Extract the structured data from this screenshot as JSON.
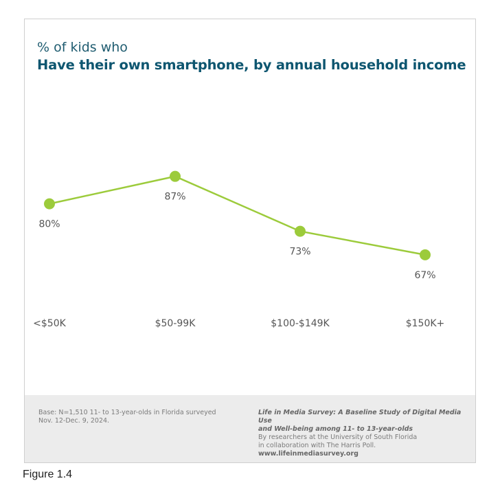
{
  "figure_caption": "Figure 1.4",
  "chart_data": {
    "type": "line",
    "subtitle": "% of kids who",
    "title": "Have their own smartphone, by annual household income",
    "categories": [
      "<$50K",
      "$50-99K",
      "$100-$149K",
      "$150K+"
    ],
    "series": [
      {
        "values": [
          80,
          87,
          73,
          67
        ],
        "labels": [
          "80%",
          "87%",
          "73%",
          "67%"
        ]
      }
    ],
    "ylim": [
      40,
      95
    ],
    "grid": false,
    "colors": {
      "line": "#9ccb3b",
      "title": "#0e5670",
      "labels": "#555555"
    }
  },
  "footer": {
    "base_line1": "Base: N=1,510 11- to 13-year-olds in Florida surveyed",
    "base_line2": "Nov. 12-Dec. 9, 2024.",
    "survey_line1": "Life in Media Survey: A Baseline Study of Digital Media Use",
    "survey_line2": "and Well-being among 11- to 13-year-olds",
    "credit_line1": "By researchers at the University of South Florida",
    "credit_line2": "in collaboration with The Harris Poll.",
    "url": "www.lifeinmediasurvey.org"
  }
}
